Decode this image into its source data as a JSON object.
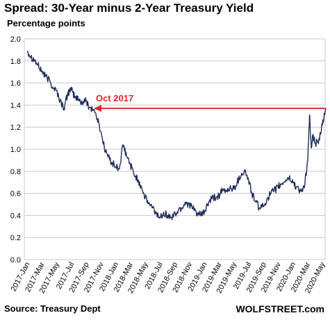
{
  "chart_data": {
    "type": "line",
    "title": "Spread: 30-Year minus 2-Year Treasury Yield",
    "subtitle": "Percentage points",
    "source": "Source: Treasury Dept",
    "brand": "WOLFSTREET.com",
    "ylim": [
      0,
      2.0
    ],
    "y_ticks": [
      "0.0",
      "0.2",
      "0.4",
      "0.6",
      "0.8",
      "1.0",
      "1.2",
      "1.4",
      "1.6",
      "1.8",
      "2.0"
    ],
    "x_ticks": [
      "2017-Jan",
      "2017-Mar",
      "2017-May",
      "2017-Jul",
      "2017-Sep",
      "2017-Nov",
      "2018-Jan",
      "2018-Mar",
      "2018-May",
      "2018-Jul",
      "2018-Sep",
      "2018-Nov",
      "2019-Jan",
      "2019-Mar",
      "2019-May",
      "2019-Jul",
      "2019-Sep",
      "2019-Nov",
      "2020-Jan",
      "2020-Mar",
      "2020-May"
    ],
    "grid": true,
    "series": [
      {
        "color": "#1f2d5a",
        "x": [
          "2017-01-03",
          "2017-01-17",
          "2017-02-01",
          "2017-02-15",
          "2017-03-01",
          "2017-03-15",
          "2017-04-03",
          "2017-04-17",
          "2017-05-01",
          "2017-05-15",
          "2017-06-01",
          "2017-06-15",
          "2017-06-26",
          "2017-07-05",
          "2017-07-17",
          "2017-08-01",
          "2017-08-15",
          "2017-09-01",
          "2017-09-15",
          "2017-10-02",
          "2017-10-16",
          "2017-11-01",
          "2017-11-15",
          "2017-12-01",
          "2017-12-15",
          "2018-01-02",
          "2018-01-16",
          "2018-02-01",
          "2018-02-15",
          "2018-03-01",
          "2018-03-15",
          "2018-04-02",
          "2018-04-16",
          "2018-05-01",
          "2018-05-15",
          "2018-06-01",
          "2018-06-15",
          "2018-07-02",
          "2018-07-16",
          "2018-08-01",
          "2018-08-15",
          "2018-09-04",
          "2018-09-17",
          "2018-10-01",
          "2018-10-15",
          "2018-11-01",
          "2018-11-15",
          "2018-12-03",
          "2018-12-17",
          "2019-01-02",
          "2019-01-15",
          "2019-02-01",
          "2019-02-15",
          "2019-03-01",
          "2019-03-15",
          "2019-04-01",
          "2019-04-15",
          "2019-05-01",
          "2019-05-15",
          "2019-06-03",
          "2019-06-17",
          "2019-07-01",
          "2019-07-15",
          "2019-08-01",
          "2019-08-15",
          "2019-09-03",
          "2019-09-16",
          "2019-10-01",
          "2019-10-15",
          "2019-11-01",
          "2019-11-15",
          "2019-12-02",
          "2019-12-16",
          "2020-01-02",
          "2020-01-15",
          "2020-02-03",
          "2020-02-18",
          "2020-03-02",
          "2020-03-09",
          "2020-03-16",
          "2020-03-23",
          "2020-04-01",
          "2020-04-15",
          "2020-05-01",
          "2020-05-15"
        ],
        "y": [
          1.89,
          1.84,
          1.81,
          1.76,
          1.71,
          1.66,
          1.62,
          1.56,
          1.53,
          1.44,
          1.37,
          1.49,
          1.55,
          1.52,
          1.47,
          1.45,
          1.42,
          1.44,
          1.38,
          1.36,
          1.28,
          1.16,
          1.02,
          0.93,
          0.88,
          0.84,
          0.82,
          1.04,
          0.94,
          0.86,
          0.78,
          0.72,
          0.66,
          0.56,
          0.51,
          0.47,
          0.42,
          0.38,
          0.43,
          0.4,
          0.38,
          0.41,
          0.45,
          0.47,
          0.52,
          0.5,
          0.46,
          0.42,
          0.4,
          0.43,
          0.5,
          0.55,
          0.56,
          0.58,
          0.62,
          0.62,
          0.65,
          0.64,
          0.7,
          0.78,
          0.8,
          0.72,
          0.6,
          0.52,
          0.47,
          0.48,
          0.55,
          0.6,
          0.62,
          0.66,
          0.68,
          0.72,
          0.74,
          0.7,
          0.66,
          0.62,
          0.65,
          0.9,
          1.31,
          1.02,
          1.12,
          1.06,
          1.05,
          1.22,
          1.37
        ]
      }
    ],
    "annotation": {
      "text": "Oct 2017",
      "level": 1.37,
      "from_x": "2017-10-02",
      "color": "#e3242b"
    }
  }
}
